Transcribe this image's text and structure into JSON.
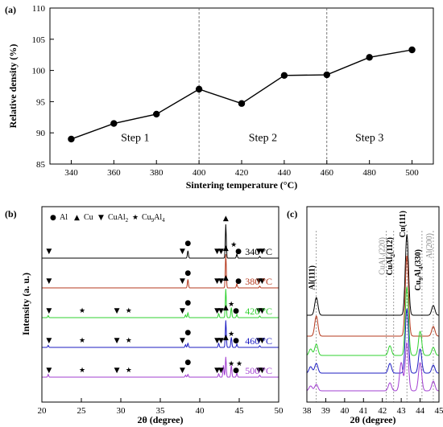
{
  "chart_data": [
    {
      "panel": "(a)",
      "type": "line",
      "xlabel": "Sintering temperature (°C)",
      "ylabel": "Relative density (%)",
      "xlim": [
        330,
        510
      ],
      "ylim": [
        85,
        110
      ],
      "xticks": [
        340,
        360,
        380,
        400,
        420,
        440,
        460,
        480,
        500
      ],
      "yticks": [
        85,
        90,
        95,
        100,
        105,
        110
      ],
      "x": [
        340,
        360,
        380,
        400,
        420,
        440,
        460,
        480,
        500
      ],
      "y": [
        89.0,
        91.5,
        93.0,
        97.0,
        94.7,
        99.2,
        99.3,
        102.1,
        103.3
      ],
      "dividers": [
        400,
        460
      ],
      "steps": [
        {
          "label": "Step 1",
          "x": 370,
          "y": 88.7
        },
        {
          "label": "Step 2",
          "x": 430,
          "y": 88.7
        },
        {
          "label": "Step 3",
          "x": 480,
          "y": 88.7
        }
      ]
    },
    {
      "panel": "(b)",
      "type": "line",
      "xlabel": "2θ (degree)",
      "ylabel": "Intensity (a. u.)",
      "xlim": [
        20,
        50
      ],
      "xticks": [
        20,
        25,
        30,
        35,
        40,
        45,
        50
      ],
      "legend": {
        "items": [
          {
            "glyph": "●",
            "label": "Al"
          },
          {
            "glyph": "▲",
            "label": "Cu"
          },
          {
            "glyph": "▼",
            "label": "CuAl2",
            "base": "CuAl",
            "sub": "2"
          },
          {
            "glyph": "★",
            "label": "Cu9Al4",
            "base": "Cu",
            "sub": "9",
            "mid": "Al",
            "sub2": "4"
          }
        ]
      },
      "series": [
        {
          "name": "340 °C",
          "color": "#000000",
          "peaks": [
            {
              "x": 38.5,
              "h": 0.22
            },
            {
              "x": 43.3,
              "h": 1.0
            },
            {
              "x": 44.7,
              "h": 0.12
            },
            {
              "x": 47.6,
              "h": 0.05
            }
          ]
        },
        {
          "name": "380 °C",
          "color": "#b5381c",
          "peaks": [
            {
              "x": 38.5,
              "h": 0.25
            },
            {
              "x": 43.3,
              "h": 1.0
            },
            {
              "x": 44.7,
              "h": 0.12
            },
            {
              "x": 47.6,
              "h": 0.05
            }
          ]
        },
        {
          "name": "420 °C",
          "color": "#2fd12f",
          "peaks": [
            {
              "x": 20.8,
              "h": 0.06
            },
            {
              "x": 38.2,
              "h": 0.08
            },
            {
              "x": 38.5,
              "h": 0.14
            },
            {
              "x": 42.4,
              "h": 0.12
            },
            {
              "x": 43.3,
              "h": 0.85
            },
            {
              "x": 44.0,
              "h": 0.3
            },
            {
              "x": 44.7,
              "h": 0.1
            },
            {
              "x": 47.6,
              "h": 0.05
            }
          ]
        },
        {
          "name": "460 °C",
          "color": "#1c1cc2",
          "peaks": [
            {
              "x": 20.8,
              "h": 0.06
            },
            {
              "x": 38.2,
              "h": 0.08
            },
            {
              "x": 38.5,
              "h": 0.12
            },
            {
              "x": 42.4,
              "h": 0.12
            },
            {
              "x": 43.3,
              "h": 0.8
            },
            {
              "x": 44.0,
              "h": 0.3
            },
            {
              "x": 44.7,
              "h": 0.1
            },
            {
              "x": 47.6,
              "h": 0.05
            }
          ]
        },
        {
          "name": "500 °C",
          "color": "#a23fd2",
          "peaks": [
            {
              "x": 20.8,
              "h": 0.08
            },
            {
              "x": 38.2,
              "h": 0.06
            },
            {
              "x": 38.5,
              "h": 0.08
            },
            {
              "x": 42.4,
              "h": 0.1
            },
            {
              "x": 43.0,
              "h": 0.35
            },
            {
              "x": 43.3,
              "h": 0.6
            },
            {
              "x": 44.0,
              "h": 0.35
            },
            {
              "x": 44.7,
              "h": 0.12
            },
            {
              "x": 47.6,
              "h": 0.06
            }
          ]
        }
      ],
      "markers": [
        {
          "row": 0,
          "items": [
            [
              20.9,
              "▼"
            ],
            [
              37.8,
              "▼"
            ],
            [
              38.5,
              "●"
            ],
            [
              42.2,
              "▼"
            ],
            [
              42.7,
              "▼"
            ],
            [
              43.3,
              "▲"
            ],
            [
              44.3,
              "★"
            ],
            [
              44.9,
              "●"
            ],
            [
              47.5,
              "▼"
            ],
            [
              47.9,
              "▼"
            ]
          ]
        },
        {
          "row": 1,
          "items": [
            [
              20.9,
              "▼"
            ],
            [
              37.8,
              "▼"
            ],
            [
              38.5,
              "●"
            ],
            [
              42.2,
              "▼"
            ],
            [
              42.7,
              "▼"
            ],
            [
              43.3,
              "▲"
            ],
            [
              44.9,
              "●"
            ],
            [
              47.5,
              "▼"
            ],
            [
              47.9,
              "▼"
            ]
          ]
        },
        {
          "row": 2,
          "items": [
            [
              20.9,
              "▼"
            ],
            [
              25.1,
              "★"
            ],
            [
              29.5,
              "▼"
            ],
            [
              31.0,
              "★"
            ],
            [
              37.8,
              "▼"
            ],
            [
              38.5,
              "●"
            ],
            [
              42.2,
              "▼"
            ],
            [
              42.7,
              "▼"
            ],
            [
              43.3,
              "▲"
            ],
            [
              44.0,
              "★"
            ],
            [
              44.6,
              "●"
            ],
            [
              47.5,
              "▼"
            ],
            [
              47.9,
              "▼"
            ]
          ]
        },
        {
          "row": 3,
          "items": [
            [
              20.9,
              "▼"
            ],
            [
              25.1,
              "★"
            ],
            [
              29.5,
              "▼"
            ],
            [
              31.0,
              "★"
            ],
            [
              37.8,
              "▼"
            ],
            [
              38.5,
              "●"
            ],
            [
              42.2,
              "▼"
            ],
            [
              42.7,
              "▼"
            ],
            [
              43.3,
              "▲"
            ],
            [
              44.0,
              "★"
            ],
            [
              44.6,
              "●"
            ],
            [
              47.5,
              "▼"
            ],
            [
              47.9,
              "▼"
            ]
          ]
        },
        {
          "row": 4,
          "items": [
            [
              20.9,
              "▼"
            ],
            [
              25.1,
              "★"
            ],
            [
              29.5,
              "▼"
            ],
            [
              31.0,
              "★"
            ],
            [
              37.8,
              "▼"
            ],
            [
              38.5,
              "●"
            ],
            [
              42.2,
              "▼"
            ],
            [
              42.7,
              "▼"
            ],
            [
              43.3,
              "▲"
            ],
            [
              44.0,
              "★"
            ],
            [
              44.6,
              "●"
            ],
            [
              45.0,
              "★"
            ],
            [
              47.5,
              "▼"
            ],
            [
              47.9,
              "▼"
            ]
          ]
        }
      ]
    },
    {
      "panel": "(c)",
      "type": "line",
      "xlabel": "2θ (degree)",
      "xlim": [
        38,
        45
      ],
      "xticks": [
        38,
        39,
        40,
        41,
        42,
        43,
        44,
        45
      ],
      "reflines": [
        {
          "x": 38.5,
          "label": "Al(111)",
          "bold": true,
          "color": "#000000"
        },
        {
          "x": 42.2,
          "label": "CuAl2(220)",
          "base": "CuAl",
          "sub": "2",
          "rest": "(220)",
          "bold": false,
          "color": "#888888"
        },
        {
          "x": 42.6,
          "label": "CuAl2(112)",
          "base": "CuAl",
          "sub": "2",
          "rest": "(112)",
          "bold": true,
          "color": "#000000"
        },
        {
          "x": 43.3,
          "label": "Cu(111)",
          "bold": true,
          "color": "#000000"
        },
        {
          "x": 44.1,
          "label": "Cu9Al4(330)",
          "base": "Cu",
          "sub": "9",
          "mid": "Al",
          "sub2": "4",
          "rest": "(330)",
          "bold": true,
          "color": "#000000"
        },
        {
          "x": 44.7,
          "label": "Al(200)",
          "bold": false,
          "color": "#888888"
        }
      ]
    }
  ]
}
